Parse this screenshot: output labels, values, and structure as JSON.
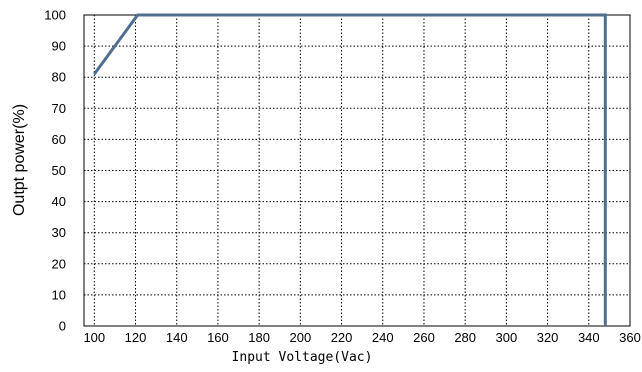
{
  "chart_data": {
    "type": "line",
    "title": "",
    "xlabel": "Input Voltage(Vac)",
    "ylabel": "Outpt power(%)",
    "xlim": [
      95,
      360
    ],
    "ylim": [
      0,
      100
    ],
    "x_ticks": [
      "100",
      "120",
      "140",
      "160",
      "180",
      "200",
      "220",
      "240",
      "260",
      "280",
      "300",
      "320",
      "340",
      "360"
    ],
    "y_ticks": [
      "0",
      "10",
      "20",
      "30",
      "40",
      "50",
      "60",
      "70",
      "80",
      "90",
      "100"
    ],
    "grid": true,
    "series": [
      {
        "color": "#4f6f91",
        "points": [
          [
            100,
            81
          ],
          [
            121,
            100
          ],
          [
            348,
            100
          ],
          [
            348,
            0
          ]
        ]
      }
    ]
  }
}
